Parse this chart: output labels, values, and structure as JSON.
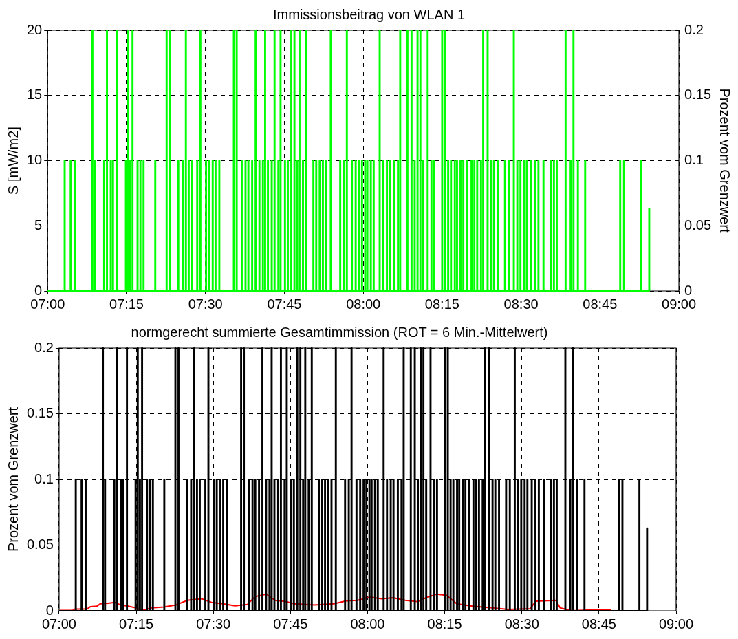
{
  "chart_data": [
    {
      "type": "step",
      "title": "Immissionsbeitrag von WLAN 1",
      "ylabel": "S [mW/m2]",
      "y2label": "Prozent vom Grenzwert",
      "xlim": [
        7,
        9
      ],
      "xticks": [
        {
          "value": 7,
          "label": "07:00"
        },
        {
          "value": 7.25,
          "label": "07:15"
        },
        {
          "value": 7.5,
          "label": "07:30"
        },
        {
          "value": 7.75,
          "label": "07:45"
        },
        {
          "value": 8,
          "label": "08:00"
        },
        {
          "value": 8.25,
          "label": "08:15"
        },
        {
          "value": 8.5,
          "label": "08:30"
        },
        {
          "value": 8.75,
          "label": "08:45"
        },
        {
          "value": 9,
          "label": "09:00"
        }
      ],
      "ylim": [
        0,
        20
      ],
      "yticks": [
        0,
        5,
        10,
        15,
        20
      ],
      "y2lim": [
        0,
        0.2
      ],
      "y2ticks": [
        0,
        0.05,
        0.1,
        0.15,
        0.2
      ],
      "grid": true,
      "series": [
        {
          "color": "#00ff00",
          "x": [
            7,
            7.053,
            7.055,
            7.072,
            7.074,
            7.085,
            7.087,
            7.141,
            7.143,
            7.148,
            7.15,
            7.178,
            7.18,
            7.187,
            7.189,
            7.199,
            7.201,
            7.206,
            7.208,
            7.219,
            7.221,
            7.247,
            7.249,
            7.254,
            7.256,
            7.261,
            7.263,
            7.268,
            7.27,
            7.284,
            7.286,
            7.293,
            7.295,
            7.303,
            7.305,
            7.34,
            7.342,
            7.376,
            7.378,
            7.386,
            7.388,
            7.413,
            7.415,
            7.427,
            7.429,
            7.437,
            7.439,
            7.446,
            7.448,
            7.455,
            7.457,
            7.473,
            7.475,
            7.483,
            7.485,
            7.501,
            7.503,
            7.51,
            7.512,
            7.522,
            7.524,
            7.531,
            7.533,
            7.543,
            7.545,
            7.589,
            7.591,
            7.598,
            7.6,
            7.614,
            7.616,
            7.626,
            7.628,
            7.635,
            7.637,
            7.647,
            7.649,
            7.658,
            7.66,
            7.67,
            7.672,
            7.681,
            7.683,
            7.688,
            7.69,
            7.697,
            7.699,
            7.709,
            7.711,
            7.718,
            7.72,
            7.73,
            7.732,
            7.737,
            7.739,
            7.751,
            7.753,
            7.76,
            7.762,
            7.771,
            7.773,
            7.781,
            7.783,
            7.79,
            7.792,
            7.797,
            7.799,
            7.808,
            7.81,
            7.818,
            7.82,
            7.841,
            7.843,
            7.85,
            7.852,
            7.861,
            7.863,
            7.871,
            7.873,
            7.882,
            7.884,
            7.896,
            7.898,
            7.926,
            7.928,
            7.938,
            7.94,
            7.947,
            7.949,
            7.963,
            7.965,
            7.975,
            7.977,
            7.986,
            7.988,
            7.995,
            7.997,
            8.005,
            8.007,
            8.012,
            8.014,
            8.023,
            8.025,
            8.032,
            8.034,
            8.051,
            8.053,
            8.062,
            8.064,
            8.074,
            8.076,
            8.083,
            8.085,
            8.097,
            8.099,
            8.109,
            8.111,
            8.116,
            8.118,
            8.139,
            8.141,
            8.152,
            8.154,
            8.162,
            8.164,
            8.171,
            8.173,
            8.18,
            8.182,
            8.189,
            8.191,
            8.203,
            8.205,
            8.215,
            8.217,
            8.224,
            8.226,
            8.249,
            8.251,
            8.259,
            8.261,
            8.268,
            8.27,
            8.277,
            8.279,
            8.289,
            8.291,
            8.296,
            8.298,
            8.307,
            8.309,
            8.316,
            8.318,
            8.328,
            8.33,
            8.342,
            8.344,
            8.351,
            8.353,
            8.36,
            8.362,
            8.372,
            8.374,
            8.379,
            8.381,
            8.393,
            8.395,
            8.404,
            8.406,
            8.413,
            8.415,
            8.425,
            8.427,
            8.448,
            8.45,
            8.46,
            8.462,
            8.476,
            8.478,
            8.487,
            8.489,
            8.497,
            8.499,
            8.508,
            8.51,
            8.517,
            8.519,
            8.531,
            8.533,
            8.543,
            8.545,
            8.554,
            8.556,
            8.57,
            8.572,
            8.594,
            8.596,
            8.603,
            8.605,
            8.612,
            8.614,
            8.64,
            8.642,
            8.656,
            8.658,
            8.665,
            8.667,
            8.679,
            8.681,
            8.702,
            8.704,
            8.813,
            8.815,
            8.825,
            8.827,
            8.88,
            8.882,
            8.905,
            8.907
          ],
          "values": [
            0,
            10,
            0,
            10,
            0,
            10,
            0,
            20,
            0,
            10,
            0,
            10,
            0,
            20,
            0,
            10,
            0,
            10,
            0,
            20,
            0,
            10,
            0,
            20,
            0,
            10,
            0,
            20,
            0,
            10,
            0,
            10,
            0,
            10,
            0,
            10,
            0,
            20,
            0,
            20,
            0,
            10,
            0,
            10,
            0,
            20,
            0,
            10,
            0,
            10,
            0,
            10,
            0,
            20,
            0,
            10,
            0,
            10,
            0,
            10,
            0,
            10,
            0,
            10,
            0,
            20,
            0,
            20,
            0,
            10,
            0,
            10,
            0,
            10,
            0,
            10,
            0,
            20,
            0,
            10,
            0,
            10,
            0,
            20,
            0,
            10,
            0,
            10,
            0,
            20,
            0,
            10,
            0,
            20,
            0,
            10,
            0,
            10,
            0,
            20,
            0,
            20,
            0,
            10,
            0,
            20,
            0,
            10,
            0,
            20,
            0,
            10,
            0,
            10,
            0,
            10,
            0,
            10,
            0,
            10,
            0,
            20,
            0,
            10,
            0,
            10,
            0,
            20,
            0,
            10,
            0,
            10,
            0,
            10,
            0,
            10,
            0,
            10,
            0,
            10,
            0,
            10,
            0,
            10,
            0,
            20,
            0,
            10,
            0,
            10,
            0,
            10,
            0,
            10,
            0,
            10,
            0,
            20,
            0,
            20,
            0,
            20,
            0,
            10,
            0,
            20,
            0,
            20,
            0,
            10,
            0,
            20,
            0,
            10,
            0,
            10,
            0,
            20,
            0,
            20,
            0,
            10,
            0,
            10,
            0,
            10,
            0,
            10,
            0,
            10,
            0,
            10,
            0,
            10,
            0,
            10,
            0,
            10,
            0,
            10,
            0,
            10,
            0,
            20,
            0,
            20,
            0,
            10,
            0,
            10,
            0,
            10,
            0,
            10,
            0,
            10,
            0,
            20,
            0,
            10,
            0,
            10,
            0,
            10,
            0,
            10,
            0,
            10,
            0,
            10,
            0,
            10,
            0,
            10,
            0,
            10,
            0,
            10,
            0,
            10,
            0,
            20,
            0,
            10,
            0,
            20,
            0,
            10,
            0,
            10,
            0,
            10,
            0,
            10,
            0,
            10,
            0,
            6.3,
            0
          ]
        }
      ]
    },
    {
      "type": "step",
      "title": "normgerecht summierte Gesamtimmission (ROT = 6 Min.-Mittelwert)",
      "ylabel": "Prozent vom Grenzwert",
      "xlim": [
        7,
        9
      ],
      "xticks": [
        {
          "value": 7,
          "label": "07:00"
        },
        {
          "value": 7.25,
          "label": "07:15"
        },
        {
          "value": 7.5,
          "label": "07:30"
        },
        {
          "value": 7.75,
          "label": "07:45"
        },
        {
          "value": 8,
          "label": "08:00"
        },
        {
          "value": 8.25,
          "label": "08:15"
        },
        {
          "value": 8.5,
          "label": "08:30"
        },
        {
          "value": 8.75,
          "label": "08:45"
        },
        {
          "value": 9,
          "label": "09:00"
        }
      ],
      "ylim": [
        0,
        0.2
      ],
      "yticks": [
        0,
        0.05,
        0.1,
        0.15,
        0.2
      ],
      "grid": true,
      "series": [
        {
          "color": "#000000",
          "x": [
            7,
            7.053,
            7.055,
            7.072,
            7.074,
            7.085,
            7.087,
            7.141,
            7.143,
            7.148,
            7.15,
            7.178,
            7.18,
            7.187,
            7.189,
            7.199,
            7.201,
            7.206,
            7.208,
            7.219,
            7.221,
            7.247,
            7.249,
            7.254,
            7.256,
            7.261,
            7.263,
            7.268,
            7.27,
            7.284,
            7.286,
            7.293,
            7.295,
            7.303,
            7.305,
            7.34,
            7.342,
            7.376,
            7.378,
            7.386,
            7.388,
            7.413,
            7.415,
            7.427,
            7.429,
            7.437,
            7.439,
            7.446,
            7.448,
            7.455,
            7.457,
            7.473,
            7.475,
            7.483,
            7.485,
            7.501,
            7.503,
            7.51,
            7.512,
            7.522,
            7.524,
            7.531,
            7.533,
            7.543,
            7.545,
            7.589,
            7.591,
            7.598,
            7.6,
            7.614,
            7.616,
            7.626,
            7.628,
            7.635,
            7.637,
            7.647,
            7.649,
            7.658,
            7.66,
            7.67,
            7.672,
            7.681,
            7.683,
            7.688,
            7.69,
            7.697,
            7.699,
            7.709,
            7.711,
            7.718,
            7.72,
            7.73,
            7.732,
            7.737,
            7.739,
            7.751,
            7.753,
            7.76,
            7.762,
            7.771,
            7.773,
            7.781,
            7.783,
            7.79,
            7.792,
            7.797,
            7.799,
            7.808,
            7.81,
            7.818,
            7.82,
            7.841,
            7.843,
            7.85,
            7.852,
            7.861,
            7.863,
            7.871,
            7.873,
            7.882,
            7.884,
            7.896,
            7.898,
            7.926,
            7.928,
            7.938,
            7.94,
            7.947,
            7.949,
            7.963,
            7.965,
            7.975,
            7.977,
            7.986,
            7.988,
            7.995,
            7.997,
            8.005,
            8.007,
            8.012,
            8.014,
            8.023,
            8.025,
            8.032,
            8.034,
            8.051,
            8.053,
            8.062,
            8.064,
            8.074,
            8.076,
            8.083,
            8.085,
            8.097,
            8.099,
            8.109,
            8.111,
            8.116,
            8.118,
            8.139,
            8.141,
            8.152,
            8.154,
            8.162,
            8.164,
            8.171,
            8.173,
            8.18,
            8.182,
            8.189,
            8.191,
            8.203,
            8.205,
            8.215,
            8.217,
            8.224,
            8.226,
            8.249,
            8.251,
            8.259,
            8.261,
            8.268,
            8.27,
            8.277,
            8.279,
            8.289,
            8.291,
            8.296,
            8.298,
            8.307,
            8.309,
            8.316,
            8.318,
            8.328,
            8.33,
            8.342,
            8.344,
            8.351,
            8.353,
            8.36,
            8.362,
            8.372,
            8.374,
            8.379,
            8.381,
            8.393,
            8.395,
            8.404,
            8.406,
            8.413,
            8.415,
            8.425,
            8.427,
            8.448,
            8.45,
            8.46,
            8.462,
            8.476,
            8.478,
            8.487,
            8.489,
            8.497,
            8.499,
            8.508,
            8.51,
            8.517,
            8.519,
            8.531,
            8.533,
            8.543,
            8.545,
            8.554,
            8.556,
            8.57,
            8.572,
            8.594,
            8.596,
            8.603,
            8.605,
            8.612,
            8.614,
            8.64,
            8.642,
            8.656,
            8.658,
            8.665,
            8.667,
            8.679,
            8.681,
            8.702,
            8.704,
            8.813,
            8.815,
            8.825,
            8.827,
            8.88,
            8.882,
            8.905,
            8.907
          ],
          "values": [
            0,
            0.1,
            0,
            0.1,
            0,
            0.1,
            0,
            0.2,
            0,
            0.1,
            0,
            0.1,
            0,
            0.2,
            0,
            0.1,
            0,
            0.1,
            0,
            0.2,
            0,
            0.1,
            0,
            0.2,
            0,
            0.1,
            0,
            0.2,
            0,
            0.1,
            0,
            0.1,
            0,
            0.1,
            0,
            0.1,
            0,
            0.2,
            0,
            0.2,
            0,
            0.1,
            0,
            0.1,
            0,
            0.2,
            0,
            0.1,
            0,
            0.1,
            0,
            0.1,
            0,
            0.2,
            0,
            0.1,
            0,
            0.1,
            0,
            0.1,
            0,
            0.1,
            0,
            0.1,
            0,
            0.2,
            0,
            0.2,
            0,
            0.1,
            0,
            0.1,
            0,
            0.1,
            0,
            0.1,
            0,
            0.2,
            0,
            0.1,
            0,
            0.1,
            0,
            0.2,
            0,
            0.1,
            0,
            0.1,
            0,
            0.2,
            0,
            0.1,
            0,
            0.2,
            0,
            0.1,
            0,
            0.1,
            0,
            0.2,
            0,
            0.2,
            0,
            0.1,
            0,
            0.2,
            0,
            0.1,
            0,
            0.2,
            0,
            0.1,
            0,
            0.1,
            0,
            0.1,
            0,
            0.1,
            0,
            0.1,
            0,
            0.2,
            0,
            0.1,
            0,
            0.1,
            0,
            0.2,
            0,
            0.1,
            0,
            0.1,
            0,
            0.1,
            0,
            0.1,
            0,
            0.1,
            0,
            0.1,
            0,
            0.1,
            0,
            0.1,
            0,
            0.2,
            0,
            0.1,
            0,
            0.1,
            0,
            0.1,
            0,
            0.1,
            0,
            0.1,
            0,
            0.2,
            0,
            0.2,
            0,
            0.2,
            0,
            0.1,
            0,
            0.2,
            0,
            0.2,
            0,
            0.1,
            0,
            0.2,
            0,
            0.1,
            0,
            0.1,
            0,
            0.2,
            0,
            0.2,
            0,
            0.1,
            0,
            0.1,
            0,
            0.1,
            0,
            0.1,
            0,
            0.1,
            0,
            0.1,
            0,
            0.1,
            0,
            0.1,
            0,
            0.1,
            0,
            0.1,
            0,
            0.1,
            0,
            0.2,
            0,
            0.2,
            0,
            0.1,
            0,
            0.1,
            0,
            0.1,
            0,
            0.1,
            0,
            0.1,
            0,
            0.2,
            0,
            0.1,
            0,
            0.1,
            0,
            0.1,
            0,
            0.1,
            0,
            0.1,
            0,
            0.1,
            0,
            0.1,
            0,
            0.1,
            0,
            0.1,
            0,
            0.1,
            0,
            0.1,
            0,
            0.2,
            0,
            0.1,
            0,
            0.2,
            0,
            0.1,
            0,
            0.1,
            0,
            0.1,
            0,
            0.1,
            0,
            0.1,
            0,
            0.063,
            0
          ]
        },
        {
          "type": "line",
          "color": "#ff0000",
          "x": [
            7.002,
            7.044,
            7.051,
            7.09,
            7.102,
            7.122,
            7.134,
            7.159,
            7.18,
            7.199,
            7.224,
            7.249,
            7.268,
            7.3,
            7.339,
            7.379,
            7.416,
            7.441,
            7.462,
            7.494,
            7.531,
            7.57,
            7.61,
            7.635,
            7.672,
            7.7,
            7.737,
            7.762,
            7.827,
            7.891,
            7.931,
            7.968,
            8.007,
            8.046,
            8.083,
            8.122,
            8.162,
            8.192,
            8.224,
            8.256,
            8.289,
            8.34,
            8.404,
            8.455,
            8.527,
            8.545,
            8.61,
            8.624,
            8.661,
            8.725,
            8.79
          ],
          "values": [
            0.0003,
            0.0003,
            0.0013,
            0.0013,
            0.0032,
            0.0035,
            0.0054,
            0.0057,
            0.0064,
            0.0045,
            0.0035,
            0.0022,
            0.0003,
            0.0022,
            0.0029,
            0.0045,
            0.008,
            0.0086,
            0.0092,
            0.0064,
            0.0054,
            0.0038,
            0.0048,
            0.0108,
            0.0127,
            0.008,
            0.007,
            0.0054,
            0.0045,
            0.0054,
            0.0076,
            0.008,
            0.0105,
            0.0092,
            0.0099,
            0.008,
            0.007,
            0.0102,
            0.0127,
            0.0118,
            0.0054,
            0.0035,
            0.0022,
            0.001,
            0.0016,
            0.0073,
            0.008,
            0.0022,
            0,
            0.0006,
            0.001
          ]
        }
      ]
    }
  ]
}
